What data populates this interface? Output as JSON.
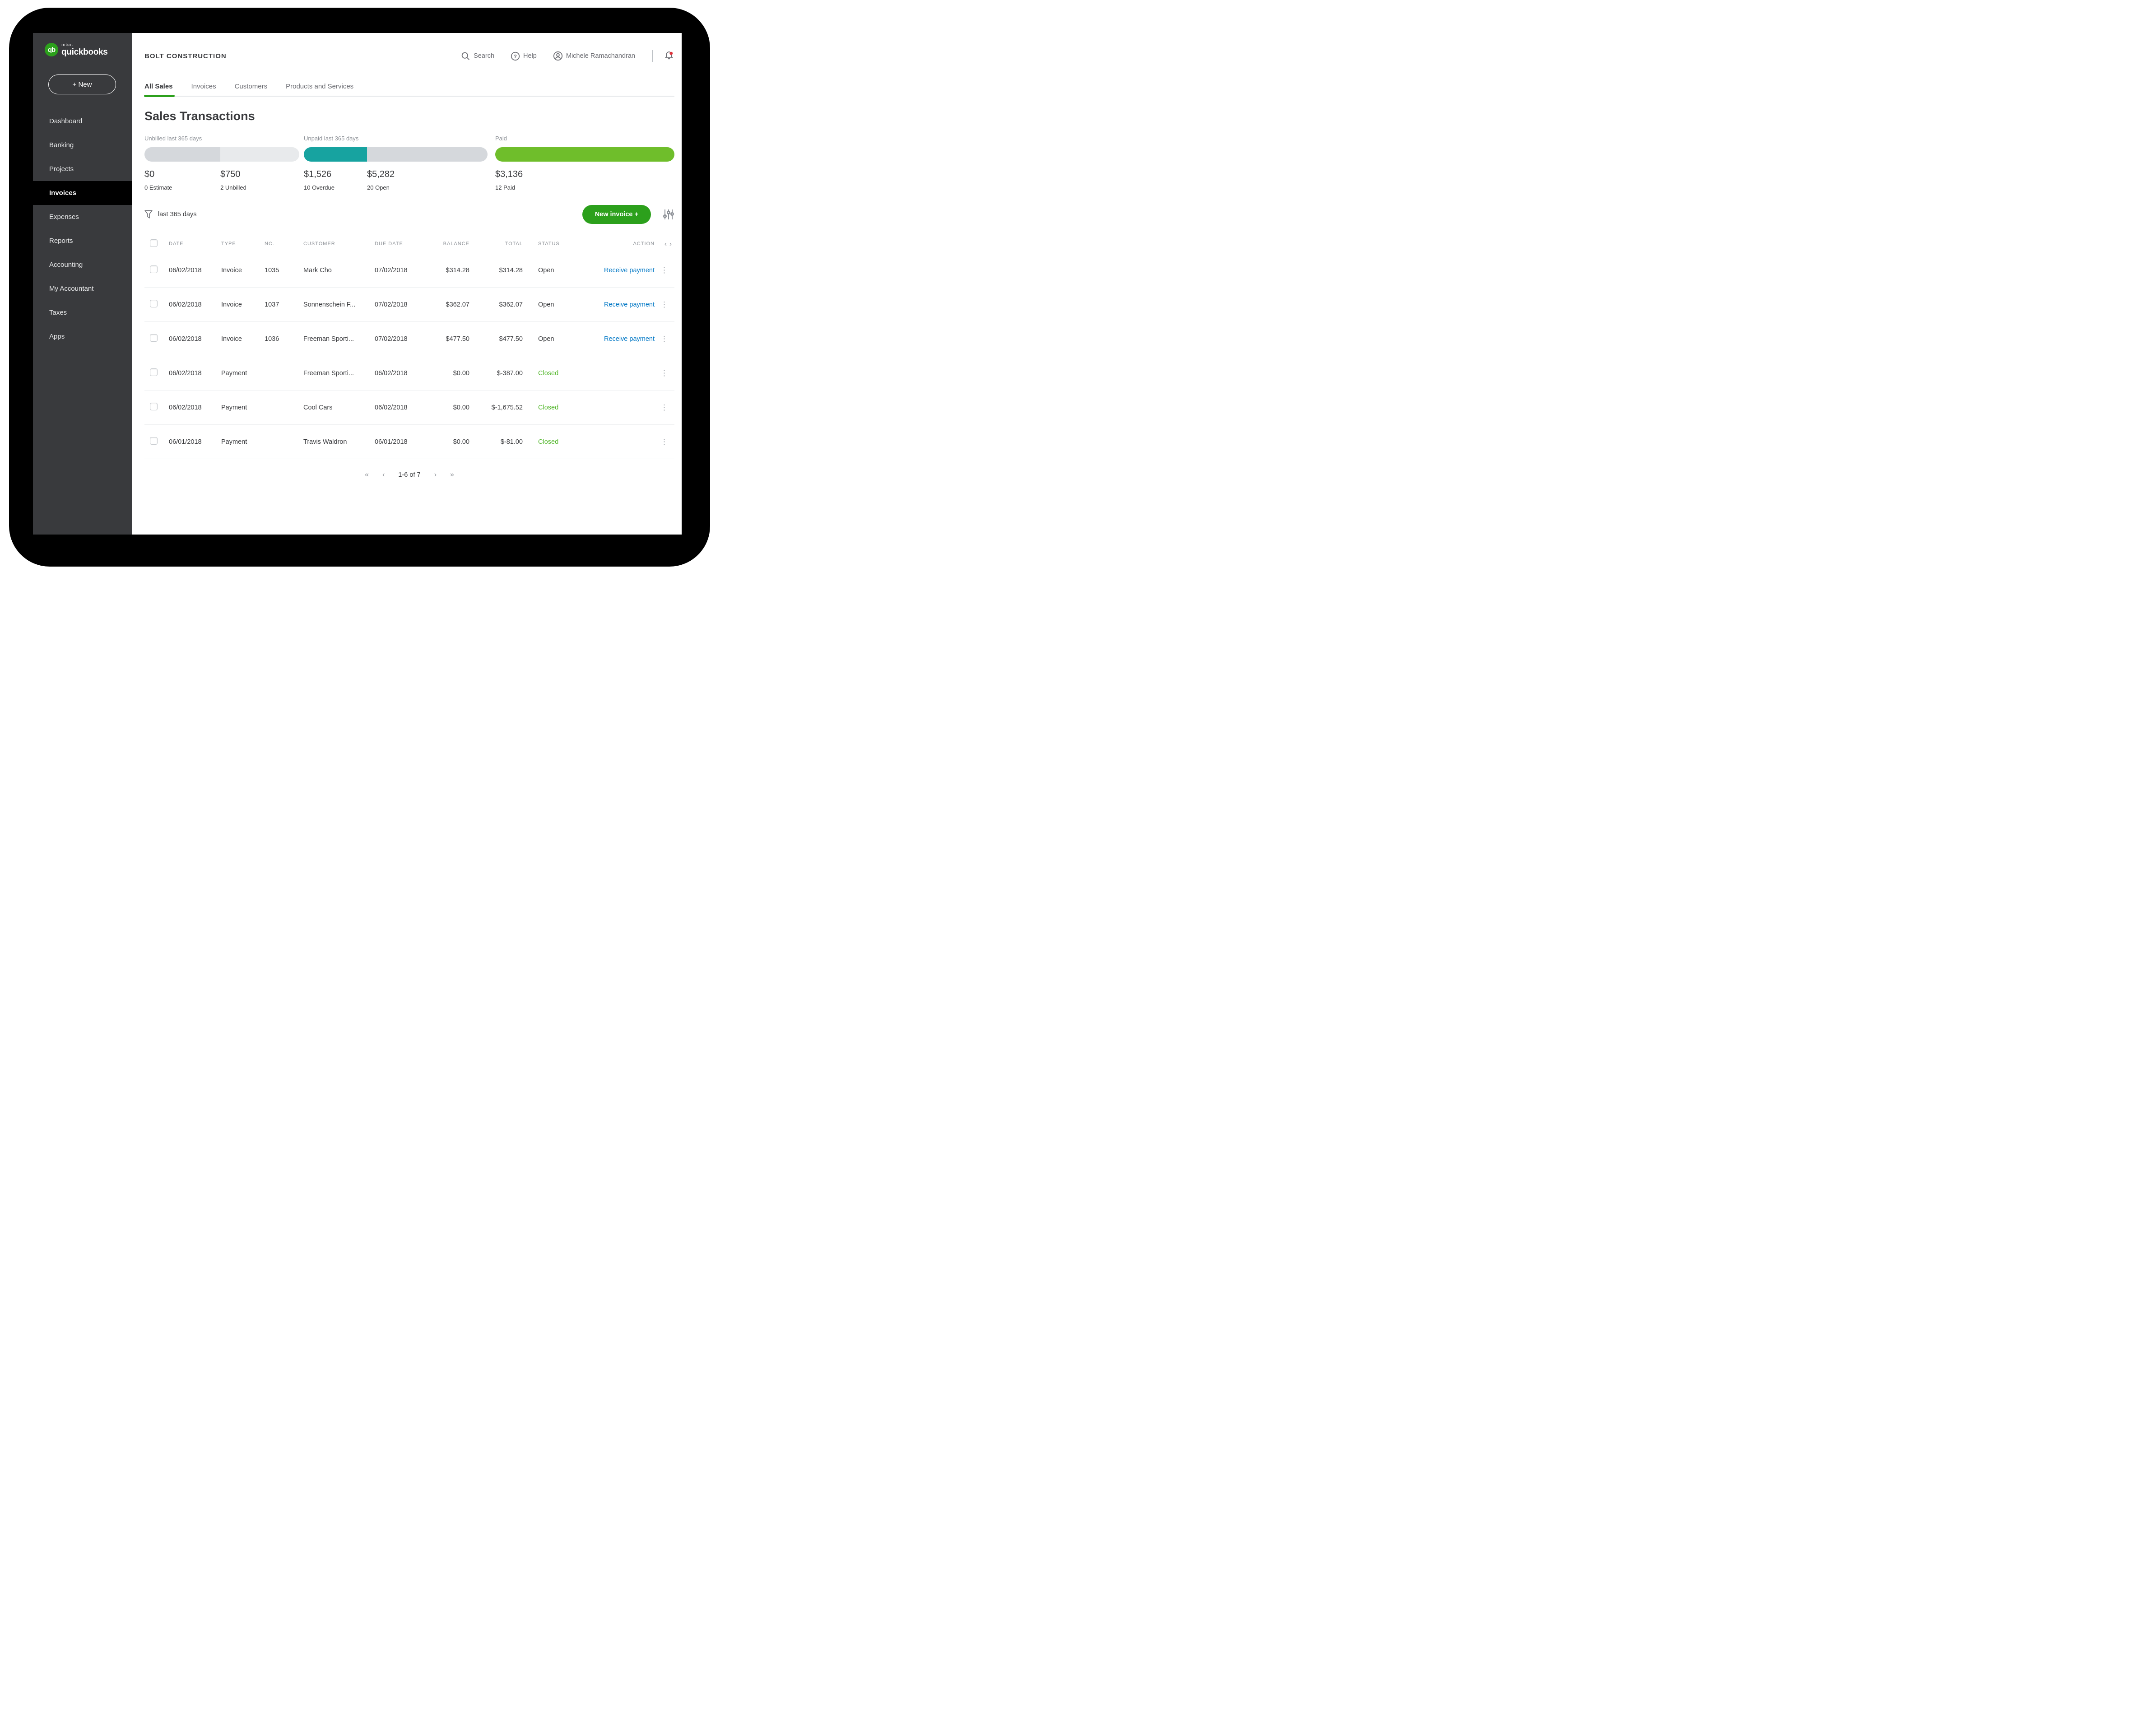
{
  "brand": {
    "monogram": "qb",
    "intuit": "ıntuıt",
    "name": "quickbooks"
  },
  "header": {
    "company": "BOLT CONSTRUCTION",
    "search_label": "Search",
    "help_label": "Help",
    "user_name": "Michele Ramachandran"
  },
  "sidebar": {
    "new_button": "+ New",
    "items": [
      {
        "label": "Dashboard",
        "active": false
      },
      {
        "label": "Banking",
        "active": false
      },
      {
        "label": "Projects",
        "active": false
      },
      {
        "label": "Invoices",
        "active": true
      },
      {
        "label": "Expenses",
        "active": false
      },
      {
        "label": "Reports",
        "active": false
      },
      {
        "label": "Accounting",
        "active": false
      },
      {
        "label": "My Accountant",
        "active": false
      },
      {
        "label": "Taxes",
        "active": false
      },
      {
        "label": "Apps",
        "active": false
      }
    ]
  },
  "tabs": [
    {
      "label": "All Sales",
      "active": true
    },
    {
      "label": "Invoices",
      "active": false
    },
    {
      "label": "Customers",
      "active": false
    },
    {
      "label": "Products and Services",
      "active": false
    }
  ],
  "page_title": "Sales Transactions",
  "stats": [
    {
      "label": "Unbilled last 365 days",
      "segments": [
        {
          "color": "#d5d8dc",
          "pct": 49
        },
        {
          "color": "#e8eaec",
          "pct": 51
        }
      ],
      "amounts": [
        {
          "value": "$0",
          "caption": "0 Estimate"
        },
        {
          "value": "$750",
          "caption": "2 Unbilled"
        }
      ]
    },
    {
      "label": "Unpaid last 365 days",
      "segments": [
        {
          "color": "#17a3a0",
          "pct": 34.4
        },
        {
          "color": "#d5d8dc",
          "pct": 65.6
        }
      ],
      "amounts": [
        {
          "value": "$1,526",
          "caption": "10 Overdue"
        },
        {
          "value": "$5,282",
          "caption": "20 Open"
        }
      ]
    },
    {
      "label": "Paid",
      "segments": [
        {
          "color": "#6fbe2b",
          "pct": 100
        }
      ],
      "amounts": [
        {
          "value": "$3,136",
          "caption": "12 Paid"
        }
      ]
    }
  ],
  "filter": {
    "label": "last 365 days"
  },
  "actions": {
    "new_invoice": "New invoice +"
  },
  "table": {
    "headers": {
      "date": "DATE",
      "type": "TYPE",
      "no": "NO.",
      "customer": "CUSTOMER",
      "due_date": "DUE DATE",
      "balance": "BALANCE",
      "total": "TOTAL",
      "status": "STATUS",
      "action": "ACTION"
    },
    "rows": [
      {
        "date": "06/02/2018",
        "type": "Invoice",
        "no": "1035",
        "customer": "Mark Cho",
        "due_date": "07/02/2018",
        "balance": "$314.28",
        "total": "$314.28",
        "status": "Open",
        "action": "Receive payment"
      },
      {
        "date": "06/02/2018",
        "type": "Invoice",
        "no": "1037",
        "customer": "Sonnenschein F...",
        "due_date": "07/02/2018",
        "balance": "$362.07",
        "total": "$362.07",
        "status": "Open",
        "action": "Receive payment"
      },
      {
        "date": "06/02/2018",
        "type": "Invoice",
        "no": "1036",
        "customer": "Freeman Sporti...",
        "due_date": "07/02/2018",
        "balance": "$477.50",
        "total": "$477.50",
        "status": "Open",
        "action": "Receive payment"
      },
      {
        "date": "06/02/2018",
        "type": "Payment",
        "no": "",
        "customer": "Freeman Sporti...",
        "due_date": "06/02/2018",
        "balance": "$0.00",
        "total": "$-387.00",
        "status": "Closed",
        "action": ""
      },
      {
        "date": "06/02/2018",
        "type": "Payment",
        "no": "",
        "customer": "Cool Cars",
        "due_date": "06/02/2018",
        "balance": "$0.00",
        "total": "$-1,675.52",
        "status": "Closed",
        "action": ""
      },
      {
        "date": "06/01/2018",
        "type": "Payment",
        "no": "",
        "customer": "Travis Waldron",
        "due_date": "06/01/2018",
        "balance": "$0.00",
        "total": "$-81.00",
        "status": "Closed",
        "action": ""
      }
    ]
  },
  "pagination": {
    "first": "«",
    "prev": "‹",
    "range": "1-6 of 7",
    "next": "›",
    "last": "»"
  },
  "colors": {
    "accent_green": "#2ca01c",
    "paid_green": "#6fbe2b",
    "teal": "#17a3a0",
    "link_blue": "#0077c5",
    "closed_green": "#54b72d",
    "sidebar_bg": "#393a3d",
    "notification_red": "#e0343c"
  }
}
